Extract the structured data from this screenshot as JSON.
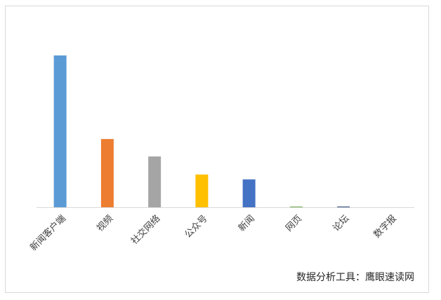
{
  "chart_data": {
    "type": "bar",
    "categories": [
      "新闻客户端",
      "视频",
      "社交网络",
      "公众号",
      "新闻",
      "网页",
      "论坛",
      "数字报"
    ],
    "values": [
      218,
      98,
      73,
      47,
      40,
      1,
      1,
      0
    ],
    "colors": [
      "#5b9bd5",
      "#ed7d31",
      "#a5a5a5",
      "#ffc000",
      "#4472c4",
      "#70ad47",
      "#264478",
      "#9e480e"
    ],
    "ylim": [
      0,
      230
    ],
    "footnote": "数据分析工具：鹰眼速读网"
  }
}
